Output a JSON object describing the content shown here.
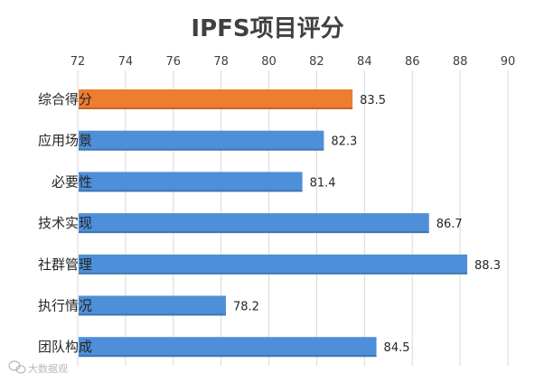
{
  "chart_data": {
    "type": "bar",
    "orientation": "horizontal",
    "title": "IPFS项目评分",
    "categories": [
      "综合得分",
      "应用场景",
      "必要性",
      "技术实现",
      "社群管理",
      "执行情况",
      "团队构成"
    ],
    "values": [
      83.5,
      82.3,
      81.4,
      86.7,
      88.3,
      78.2,
      84.5
    ],
    "value_labels": [
      "83.5",
      "82.3",
      "81.4",
      "86.7",
      "88.3",
      "78.2",
      "84.5"
    ],
    "xlim": [
      72,
      90
    ],
    "x_ticks": [
      "72",
      "74",
      "76",
      "78",
      "80",
      "82",
      "84",
      "86",
      "88",
      "90"
    ],
    "x_axis_position": "top",
    "grid": true,
    "colors": {
      "highlight": "#ED7D31",
      "default": "#4E8FD9",
      "grid": "#D9D9D9"
    },
    "highlight_index": 0
  },
  "watermark": {
    "text": "大数据观",
    "icon": "wechat-icon"
  }
}
